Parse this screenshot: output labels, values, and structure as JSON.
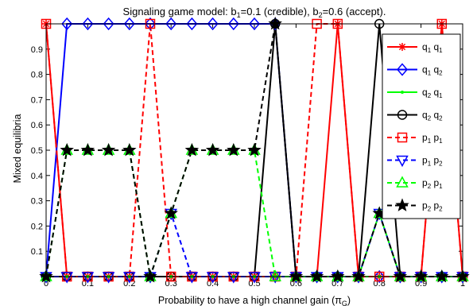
{
  "chart_data": {
    "type": "line",
    "title": "Signaling game model: b1=0.1 (credible), b2=0.6 (accept).",
    "title_parts": {
      "pre": "Signaling game model: b",
      "s1": "1",
      "mid": "=0.1 (credible), b",
      "s2": "2",
      "post": "=0.6 (accept)."
    },
    "xlabel": "Probability to have a high channel gain (πG)",
    "xlabel_parts": {
      "pre": "Probability to have a high channel gain (π",
      "sub": "G",
      "post": ")"
    },
    "ylabel": "Mixed equilibria",
    "xlim": [
      0,
      1
    ],
    "ylim": [
      0,
      1
    ],
    "xticks": [
      0,
      0.1,
      0.2,
      0.3,
      0.4,
      0.5,
      0.6,
      0.7,
      0.8,
      0.9,
      1
    ],
    "xtick_labels": [
      "0",
      "0.1",
      "0.2",
      "0.3",
      "0.4",
      "0.5",
      "0.6",
      "0.7",
      "0.8",
      "0.9",
      "1"
    ],
    "yticks": [
      0.1,
      0.2,
      0.3,
      0.4,
      0.5,
      0.6,
      0.7,
      0.8,
      0.9
    ],
    "ytick_labels": [
      "0.1",
      "0.2",
      "0.3",
      "0.4",
      "0.5",
      "0.6",
      "0.7",
      "0.8",
      "0.9"
    ],
    "grid": false,
    "legend_position": "top-right",
    "x": [
      0,
      0.05,
      0.1,
      0.15,
      0.2,
      0.25,
      0.3,
      0.35,
      0.4,
      0.45,
      0.5,
      0.55,
      0.6,
      0.65,
      0.7,
      0.75,
      0.8,
      0.85,
      0.9,
      0.95,
      1
    ],
    "series": [
      {
        "name": "q1 q1",
        "label": {
          "a": "q",
          "s1": "1",
          "b": " q",
          "s2": "1"
        },
        "color": "#ff0000",
        "dash": "solid",
        "marker": "asterisk",
        "values": [
          1,
          0,
          0,
          0,
          0,
          0,
          0,
          0,
          0,
          0,
          0,
          0,
          0,
          0,
          1,
          0,
          0,
          0,
          0,
          1,
          0
        ]
      },
      {
        "name": "q1 q2",
        "label": {
          "a": "q",
          "s1": "1",
          "b": " q",
          "s2": "2"
        },
        "color": "#0000ff",
        "dash": "solid",
        "marker": "diamond",
        "values": [
          0,
          1,
          1,
          1,
          1,
          1,
          1,
          1,
          1,
          1,
          1,
          1,
          0,
          0,
          0,
          0,
          0,
          0,
          0,
          0,
          0
        ]
      },
      {
        "name": "q2 q1",
        "label": {
          "a": "q",
          "s1": "2",
          "b": " q",
          "s2": "1"
        },
        "color": "#00ff00",
        "dash": "solid",
        "marker": "dot",
        "values": [
          0,
          0,
          0,
          0,
          0,
          0,
          0,
          0,
          0,
          0,
          0,
          0,
          0,
          0,
          0,
          0,
          0,
          0,
          0,
          0,
          0
        ]
      },
      {
        "name": "q2 q2",
        "label": {
          "a": "q",
          "s1": "2",
          "b": " q",
          "s2": "2"
        },
        "color": "#000000",
        "dash": "solid",
        "marker": "circle",
        "values": [
          0,
          0,
          0,
          0,
          0,
          0,
          0,
          0,
          0,
          0,
          0,
          1,
          0,
          0,
          0,
          0,
          1,
          0,
          0,
          0,
          0
        ]
      },
      {
        "name": "p1 p1",
        "label": {
          "a": "p",
          "s1": "1",
          "b": " p",
          "s2": "1"
        },
        "color": "#ff0000",
        "dash": "dashed",
        "marker": "square",
        "values": [
          1,
          0,
          0,
          0,
          0,
          1,
          0,
          0,
          0,
          0,
          0,
          0,
          0,
          1,
          1,
          0,
          0,
          0,
          0,
          1,
          0
        ]
      },
      {
        "name": "p1 p2",
        "label": {
          "a": "p",
          "s1": "1",
          "b": " p",
          "s2": "2"
        },
        "color": "#0000ff",
        "dash": "dashed",
        "marker": "triangle-down",
        "values": [
          0,
          0,
          0,
          0,
          0,
          0,
          0.25,
          0,
          0,
          0,
          0,
          0,
          0,
          0,
          0,
          0,
          0.25,
          0,
          0,
          0,
          0
        ]
      },
      {
        "name": "p2 p1",
        "label": {
          "a": "p",
          "s1": "2",
          "b": " p",
          "s2": "1"
        },
        "color": "#00ff00",
        "dash": "dashed",
        "marker": "triangle-up",
        "values": [
          0,
          0.5,
          0.5,
          0.5,
          0.5,
          0,
          0.25,
          0.5,
          0.5,
          0.5,
          0.5,
          0,
          0,
          0,
          0,
          0,
          0.25,
          0,
          0,
          0,
          0
        ]
      },
      {
        "name": "p2 p2",
        "label": {
          "a": "p",
          "s1": "2",
          "b": " p",
          "s2": "2"
        },
        "color": "#000000",
        "dash": "dashed",
        "marker": "star",
        "values": [
          0,
          0.5,
          0.5,
          0.5,
          0.5,
          0,
          0.25,
          0.5,
          0.5,
          0.5,
          0.5,
          1,
          0,
          0,
          0,
          0,
          0.25,
          0,
          0,
          0,
          0
        ]
      }
    ]
  }
}
